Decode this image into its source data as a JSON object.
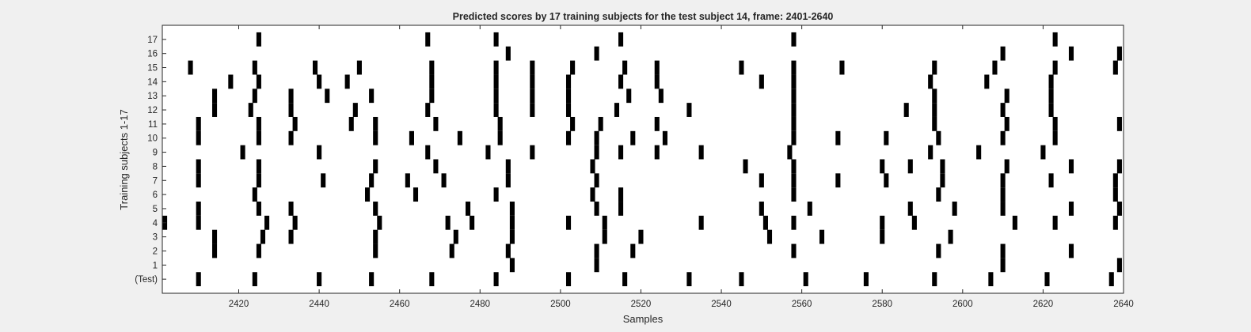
{
  "chart_data": {
    "type": "raster",
    "title": "Predicted scores by 17 training subjects for the test subject 14, frame: 2401-2640",
    "xlabel": "Samples",
    "ylabel": "Training subjects 1-17",
    "xlim": [
      2401,
      2640
    ],
    "x_ticks": [
      2420,
      2440,
      2460,
      2480,
      2500,
      2520,
      2540,
      2560,
      2580,
      2600,
      2620,
      2640
    ],
    "rows": [
      {
        "label": "(Test)",
        "events": [
          2410,
          2424,
          2440,
          2453,
          2468,
          2484,
          2502,
          2516,
          2532,
          2545,
          2561,
          2576,
          2593,
          2607,
          2621,
          2637
        ]
      },
      {
        "label": "1",
        "events": [
          2488,
          2509,
          2610,
          2639
        ]
      },
      {
        "label": "2",
        "events": [
          2414,
          2425,
          2454,
          2473,
          2487,
          2509,
          2518,
          2558,
          2594,
          2610,
          2627
        ]
      },
      {
        "label": "3",
        "events": [
          2414,
          2426,
          2433,
          2454,
          2474,
          2488,
          2511,
          2520,
          2552,
          2565,
          2580,
          2597
        ]
      },
      {
        "label": "4",
        "events": [
          2401,
          2410,
          2427,
          2434,
          2455,
          2472,
          2478,
          2488,
          2502,
          2511,
          2535,
          2551,
          2558,
          2580,
          2588,
          2613,
          2623,
          2638
        ]
      },
      {
        "label": "5",
        "events": [
          2410,
          2425,
          2433,
          2454,
          2477,
          2488,
          2509,
          2515,
          2550,
          2562,
          2587,
          2598,
          2610,
          2627,
          2639
        ]
      },
      {
        "label": "6",
        "events": [
          2424,
          2452,
          2464,
          2484,
          2508,
          2515,
          2558,
          2594,
          2610,
          2638
        ]
      },
      {
        "label": "7",
        "events": [
          2410,
          2425,
          2441,
          2453,
          2462,
          2471,
          2487,
          2509,
          2550,
          2558,
          2569,
          2581,
          2595,
          2610,
          2622,
          2638
        ]
      },
      {
        "label": "8",
        "events": [
          2410,
          2425,
          2454,
          2469,
          2487,
          2508,
          2546,
          2558,
          2580,
          2587,
          2595,
          2611,
          2627,
          2639
        ]
      },
      {
        "label": "9",
        "events": [
          2421,
          2440,
          2467,
          2482,
          2493,
          2509,
          2515,
          2524,
          2535,
          2557,
          2592,
          2604,
          2620
        ]
      },
      {
        "label": "10",
        "events": [
          2410,
          2425,
          2433,
          2454,
          2463,
          2475,
          2485,
          2502,
          2509,
          2518,
          2526,
          2558,
          2569,
          2581,
          2594,
          2610,
          2623
        ]
      },
      {
        "label": "11",
        "events": [
          2410,
          2425,
          2434,
          2448,
          2454,
          2469,
          2485,
          2503,
          2510,
          2524,
          2558,
          2593,
          2611,
          2623,
          2639
        ]
      },
      {
        "label": "12",
        "events": [
          2414,
          2423,
          2433,
          2449,
          2467,
          2484,
          2493,
          2502,
          2514,
          2532,
          2558,
          2586,
          2593,
          2610,
          2622
        ]
      },
      {
        "label": "13",
        "events": [
          2414,
          2424,
          2433,
          2442,
          2453,
          2468,
          2484,
          2493,
          2502,
          2517,
          2525,
          2558,
          2593,
          2611,
          2622
        ]
      },
      {
        "label": "14",
        "events": [
          2418,
          2425,
          2440,
          2447,
          2468,
          2484,
          2493,
          2502,
          2515,
          2524,
          2550,
          2558,
          2592,
          2606,
          2622
        ]
      },
      {
        "label": "15",
        "events": [
          2408,
          2424,
          2439,
          2450,
          2468,
          2484,
          2493,
          2503,
          2516,
          2524,
          2545,
          2558,
          2570,
          2593,
          2608,
          2623,
          2638
        ]
      },
      {
        "label": "16",
        "events": [
          2487,
          2509,
          2610,
          2627,
          2639
        ]
      },
      {
        "label": "17",
        "events": [
          2425,
          2467,
          2484,
          2515,
          2558,
          2623
        ]
      }
    ]
  }
}
